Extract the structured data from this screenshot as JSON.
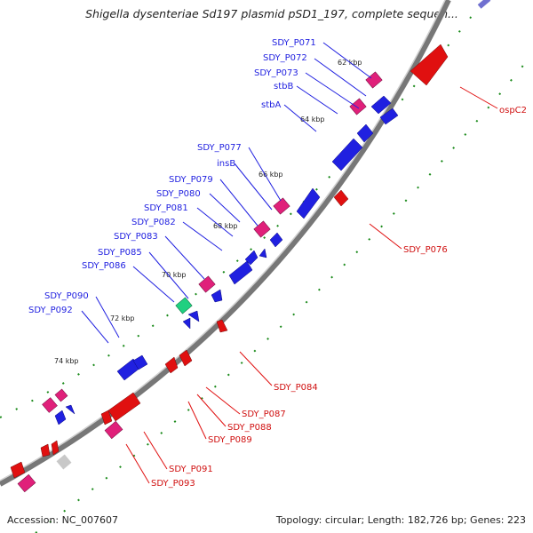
{
  "title": "Shigella dysenteriae Sd197 plasmid pSD1_197, complete sequen...",
  "accession": "Accession: NC_007607",
  "summary": "Topology: circular; Length: 182,726 bp; Genes: 223",
  "colors": {
    "forward": "#2020e0",
    "reverse": "#e01010",
    "pink": "#e0207a",
    "green": "#20d080",
    "backbone": "#888888",
    "tick": "#1a8a1a"
  },
  "kbp_ticks": [
    "62 kbp",
    "64 kbp",
    "66 kbp",
    "68 kbp",
    "70 kbp",
    "72 kbp",
    "74 kbp"
  ],
  "forward_labels": [
    "SDY_P071",
    "SDY_P072",
    "SDY_P073",
    "stbB",
    "stbA",
    "SDY_P077",
    "insB",
    "SDY_P079",
    "SDY_P080",
    "SDY_P081",
    "SDY_P082",
    "SDY_P083",
    "SDY_P085",
    "SDY_P086",
    "SDY_P090",
    "SDY_P092"
  ],
  "reverse_labels": [
    "ospC2",
    "SDY_P076",
    "SDY_P084",
    "SDY_P087",
    "SDY_P088",
    "SDY_P089",
    "SDY_P091",
    "SDY_P093"
  ]
}
